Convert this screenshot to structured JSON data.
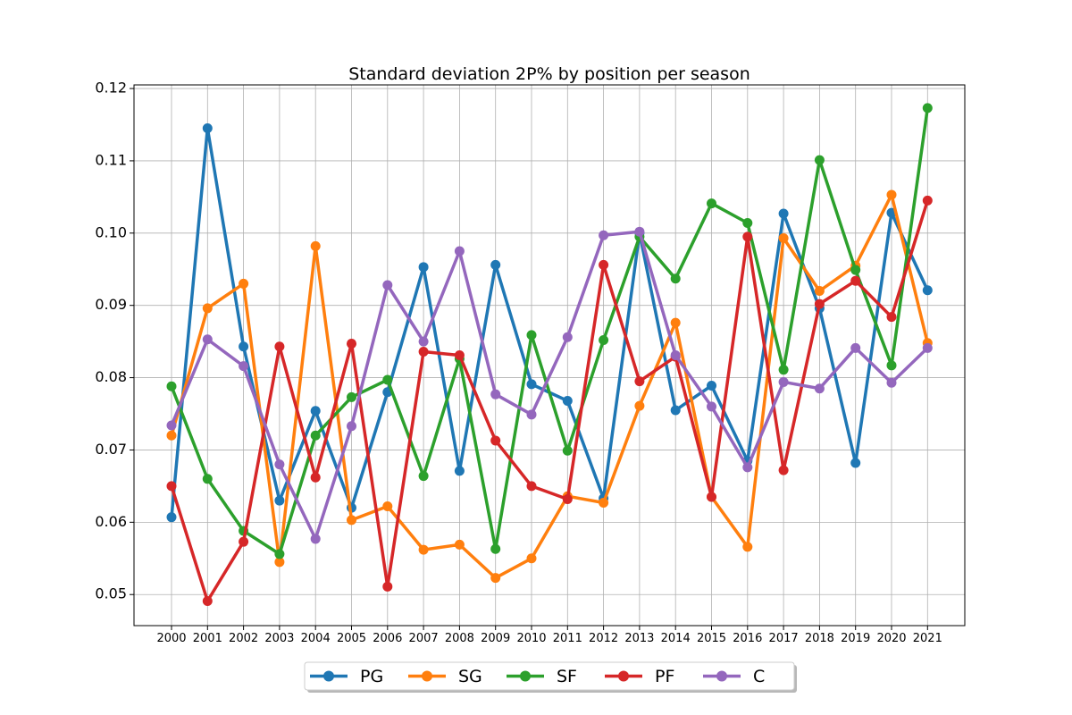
{
  "chart_data": {
    "type": "line",
    "title": "Standard deviation 2P% by position per season",
    "xlabel": "",
    "ylabel": "",
    "x": [
      "2000",
      "2001",
      "2002",
      "2003",
      "2004",
      "2005",
      "2006",
      "2007",
      "2008",
      "2009",
      "2010",
      "2011",
      "2012",
      "2013",
      "2014",
      "2015",
      "2016",
      "2017",
      "2018",
      "2019",
      "2020",
      "2021"
    ],
    "ylim": [
      0.0457,
      0.1205
    ],
    "yticks": [
      "0.05",
      "0.06",
      "0.07",
      "0.08",
      "0.09",
      "0.10",
      "0.11",
      "0.12"
    ],
    "grid": true,
    "legend_position": "bottom-center",
    "series": [
      {
        "name": "PG",
        "color": "#1f77b4",
        "values": [
          0.0607,
          0.1145,
          0.0843,
          0.063,
          0.0754,
          0.062,
          0.078,
          0.0953,
          0.0671,
          0.0956,
          0.0791,
          0.0768,
          0.0633,
          0.1,
          0.0755,
          0.0789,
          0.0685,
          0.1027,
          0.0896,
          0.0682,
          0.1028,
          0.0921
        ]
      },
      {
        "name": "SG",
        "color": "#ff7f0e",
        "values": [
          0.072,
          0.0896,
          0.093,
          0.0545,
          0.0982,
          0.0603,
          0.0622,
          0.0562,
          0.0569,
          0.0523,
          0.055,
          0.0636,
          0.0627,
          0.0761,
          0.0876,
          0.0635,
          0.0566,
          0.0993,
          0.092,
          0.0955,
          0.1053,
          0.0848
        ]
      },
      {
        "name": "SF",
        "color": "#2ca02c",
        "values": [
          0.0788,
          0.066,
          0.0588,
          0.0556,
          0.072,
          0.0773,
          0.0797,
          0.0664,
          0.0826,
          0.0563,
          0.0859,
          0.0699,
          0.0852,
          0.0995,
          0.0937,
          0.1041,
          0.1014,
          0.0811,
          0.1101,
          0.0949,
          0.0817,
          0.1173
        ]
      },
      {
        "name": "PF",
        "color": "#d62728",
        "values": [
          0.065,
          0.0491,
          0.0573,
          0.0843,
          0.0662,
          0.0847,
          0.0511,
          0.0836,
          0.0831,
          0.0713,
          0.065,
          0.0632,
          0.0956,
          0.0795,
          0.0829,
          0.0635,
          0.0995,
          0.0672,
          0.0902,
          0.0934,
          0.0884,
          0.1045
        ]
      },
      {
        "name": "C",
        "color": "#9467bd",
        "values": [
          0.0734,
          0.0853,
          0.0816,
          0.068,
          0.0577,
          0.0733,
          0.0928,
          0.085,
          0.0975,
          0.0777,
          0.0749,
          0.0856,
          0.0997,
          0.1002,
          0.0831,
          0.076,
          0.0676,
          0.0794,
          0.0785,
          0.0841,
          0.0793,
          0.0841
        ]
      }
    ]
  }
}
